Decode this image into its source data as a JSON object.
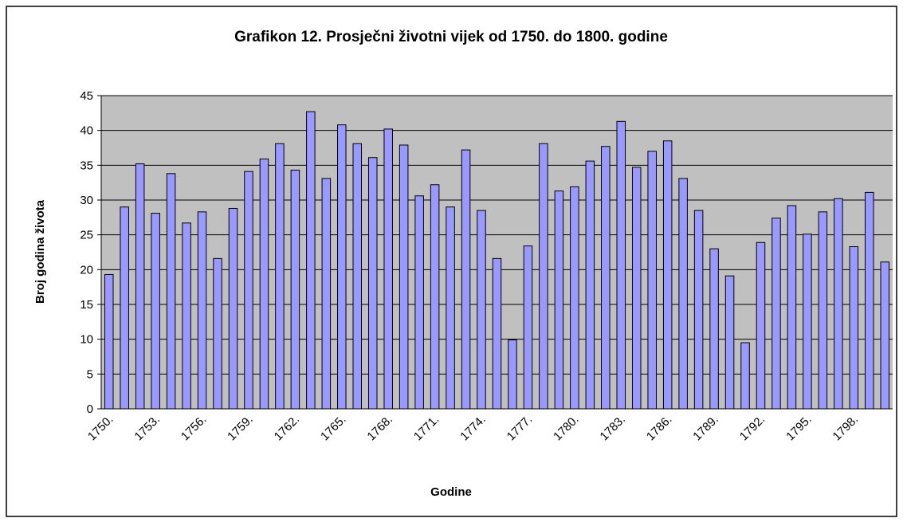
{
  "chart_data": {
    "type": "bar",
    "title": "Grafikon 12. Prosječni životni vijek od 1750. do 1800. godine",
    "x_label": "Godine",
    "y_label": "Broj godina života",
    "categories": [
      "1750.",
      null,
      null,
      "1753.",
      null,
      null,
      "1756.",
      null,
      null,
      "1759.",
      null,
      null,
      "1762.",
      null,
      null,
      "1765.",
      null,
      null,
      "1768.",
      null,
      null,
      "1771.",
      null,
      null,
      "1774.",
      null,
      null,
      "1777.",
      null,
      null,
      "1780.",
      null,
      null,
      "1783.",
      null,
      null,
      "1786.",
      null,
      null,
      "1789.",
      null,
      null,
      "1792.",
      null,
      null,
      "1795.",
      null,
      null,
      "1798.",
      null,
      null
    ],
    "values": [
      19.3,
      29,
      35.2,
      28.1,
      33.8,
      26.7,
      28.3,
      21.6,
      28.8,
      34.1,
      35.9,
      38.1,
      34.3,
      42.7,
      33.1,
      40.8,
      38.1,
      36.1,
      40.2,
      37.9,
      30.6,
      32.2,
      29,
      37.2,
      28.5,
      21.6,
      9.9,
      23.4,
      38.1,
      31.3,
      31.9,
      35.6,
      37.7,
      41.3,
      34.7,
      37,
      38.5,
      33.1,
      28.5,
      23,
      19.1,
      9.5,
      23.9,
      27.4,
      29.2,
      25.1,
      28.3,
      30.2,
      23.3,
      31.1,
      21.1
    ],
    "color": "#9999ff",
    "ylim": [
      0,
      45
    ],
    "yticks": [
      0,
      5,
      10,
      15,
      20,
      25,
      30,
      35,
      40,
      45
    ],
    "grid": true
  }
}
